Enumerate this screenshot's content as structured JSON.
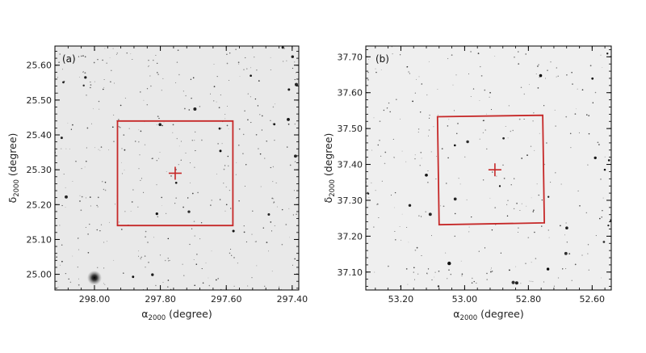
{
  "figure": {
    "panels": [
      {
        "label": "(a)",
        "xlabel": {
          "symbol": "α",
          "sub": "2000",
          "unit": "(degree)"
        },
        "ylabel": {
          "symbol": "δ",
          "sub": "2000",
          "unit": "(degree)"
        },
        "xlim": [
          298.12,
          297.38
        ],
        "ylim": [
          24.955,
          25.655
        ],
        "xticks": [
          298.0,
          297.8,
          297.6,
          297.4
        ],
        "xtick_labels": [
          "298.00",
          "297.80",
          "297.60",
          "297.40"
        ],
        "yticks": [
          25.0,
          25.1,
          25.2,
          25.3,
          25.4,
          25.5,
          25.6
        ],
        "ytick_labels": [
          "25.00",
          "25.10",
          "25.20",
          "25.30",
          "25.40",
          "25.50",
          "25.60"
        ],
        "box": [
          [
            297.93,
            25.44
          ],
          [
            297.58,
            25.44
          ],
          [
            297.58,
            25.14
          ],
          [
            297.93,
            25.14
          ]
        ],
        "cross": [
          297.755,
          25.29
        ],
        "bright_star": [
          298.0,
          24.99
        ],
        "background": "#e9e9e9",
        "marker_color": "#c62828"
      },
      {
        "label": "(b)",
        "xlabel": {
          "symbol": "α",
          "sub": "2000",
          "unit": "(degree)"
        },
        "ylabel": {
          "symbol": "δ",
          "sub": "2000",
          "unit": "(degree)"
        },
        "xlim": [
          53.31,
          52.54
        ],
        "ylim": [
          37.05,
          37.73
        ],
        "xticks": [
          53.2,
          53.0,
          52.8,
          52.6
        ],
        "xtick_labels": [
          "53.20",
          "53.00",
          "52.80",
          "52.60"
        ],
        "yticks": [
          37.1,
          37.2,
          37.3,
          37.4,
          37.5,
          37.6,
          37.7
        ],
        "ytick_labels": [
          "37.10",
          "37.20",
          "37.30",
          "37.40",
          "37.50",
          "37.60",
          "37.70"
        ],
        "box": [
          [
            53.085,
            37.533
          ],
          [
            52.755,
            37.537
          ],
          [
            52.75,
            37.237
          ],
          [
            53.08,
            37.232
          ]
        ],
        "cross": [
          52.905,
          37.385
        ],
        "background": "#efefef",
        "marker_color": "#c62828"
      }
    ]
  }
}
